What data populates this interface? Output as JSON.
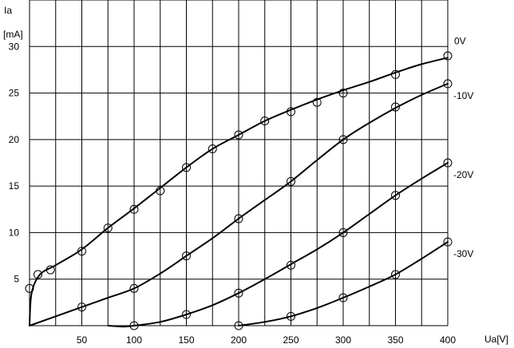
{
  "chart_data": {
    "type": "line",
    "title": "",
    "xlabel": "Ua[V]",
    "ylabel_line1": "Ia",
    "ylabel_line2": "[mA]",
    "xlim": [
      0,
      400
    ],
    "ylim": [
      0,
      35
    ],
    "x_ticks": [
      50,
      100,
      150,
      200,
      250,
      300,
      350,
      400
    ],
    "y_ticks": [
      5,
      10,
      15,
      20,
      25,
      30
    ],
    "x_tick_labels": [
      "50",
      "100",
      "150",
      "200",
      "250",
      "300",
      "350",
      "400"
    ],
    "y_tick_labels": [
      "5",
      "10",
      "15",
      "20",
      "25",
      "30"
    ],
    "x_grid": [
      0,
      25,
      50,
      75,
      100,
      125,
      150,
      175,
      200,
      225,
      250,
      275,
      300,
      325,
      350,
      375,
      400
    ],
    "y_grid": [
      0,
      5,
      10,
      15,
      20,
      25,
      30,
      35
    ],
    "grid": true,
    "series": [
      {
        "name": "0V",
        "curve": [
          [
            0,
            0
          ],
          [
            2,
            3.5
          ],
          [
            10,
            5.5
          ],
          [
            25,
            6.5
          ],
          [
            50,
            8.2
          ],
          [
            75,
            10.5
          ],
          [
            100,
            12.6
          ],
          [
            125,
            14.8
          ],
          [
            150,
            17
          ],
          [
            175,
            19
          ],
          [
            200,
            20.5
          ],
          [
            225,
            22
          ],
          [
            250,
            23.2
          ],
          [
            275,
            24.3
          ],
          [
            300,
            25.3
          ],
          [
            325,
            26.2
          ],
          [
            350,
            27.2
          ],
          [
            375,
            28.1
          ],
          [
            400,
            28.8
          ]
        ],
        "points": [
          [
            0,
            4
          ],
          [
            8,
            5.5
          ],
          [
            20,
            6
          ],
          [
            50,
            8
          ],
          [
            75,
            10.5
          ],
          [
            100,
            12.5
          ],
          [
            125,
            14.5
          ],
          [
            150,
            17
          ],
          [
            175,
            19
          ],
          [
            200,
            20.5
          ],
          [
            225,
            22
          ],
          [
            250,
            23
          ],
          [
            275,
            24
          ],
          [
            300,
            25
          ],
          [
            350,
            27
          ],
          [
            400,
            29
          ]
        ]
      },
      {
        "name": "-10V",
        "curve": [
          [
            0,
            0
          ],
          [
            50,
            2
          ],
          [
            75,
            3
          ],
          [
            100,
            4
          ],
          [
            125,
            5.6
          ],
          [
            150,
            7.5
          ],
          [
            175,
            9.4
          ],
          [
            200,
            11.5
          ],
          [
            225,
            13.5
          ],
          [
            250,
            15.5
          ],
          [
            275,
            17.8
          ],
          [
            300,
            20
          ],
          [
            325,
            21.8
          ],
          [
            350,
            23.4
          ],
          [
            375,
            24.8
          ],
          [
            400,
            26
          ]
        ],
        "points": [
          [
            50,
            2
          ],
          [
            100,
            4
          ],
          [
            150,
            7.5
          ],
          [
            200,
            11.5
          ],
          [
            250,
            15.5
          ],
          [
            300,
            20
          ],
          [
            350,
            23.5
          ],
          [
            400,
            26
          ]
        ]
      },
      {
        "name": "-20V",
        "curve": [
          [
            75,
            0
          ],
          [
            90,
            -0.1
          ],
          [
            100,
            0
          ],
          [
            125,
            0.4
          ],
          [
            150,
            1.2
          ],
          [
            175,
            2.2
          ],
          [
            200,
            3.5
          ],
          [
            225,
            5
          ],
          [
            250,
            6.6
          ],
          [
            275,
            8.2
          ],
          [
            300,
            10
          ],
          [
            325,
            12
          ],
          [
            350,
            14
          ],
          [
            375,
            15.8
          ],
          [
            400,
            17.5
          ]
        ],
        "points": [
          [
            100,
            0
          ],
          [
            150,
            1.2
          ],
          [
            200,
            3.5
          ],
          [
            250,
            6.5
          ],
          [
            300,
            10
          ],
          [
            350,
            14
          ],
          [
            400,
            17.5
          ]
        ]
      },
      {
        "name": "-30V",
        "curve": [
          [
            200,
            0
          ],
          [
            225,
            0.4
          ],
          [
            250,
            1
          ],
          [
            275,
            1.9
          ],
          [
            300,
            3
          ],
          [
            325,
            4.2
          ],
          [
            350,
            5.5
          ],
          [
            375,
            7.2
          ],
          [
            400,
            9
          ]
        ],
        "points": [
          [
            200,
            0
          ],
          [
            250,
            1
          ],
          [
            300,
            3
          ],
          [
            350,
            5.5
          ],
          [
            400,
            9
          ]
        ]
      }
    ]
  }
}
